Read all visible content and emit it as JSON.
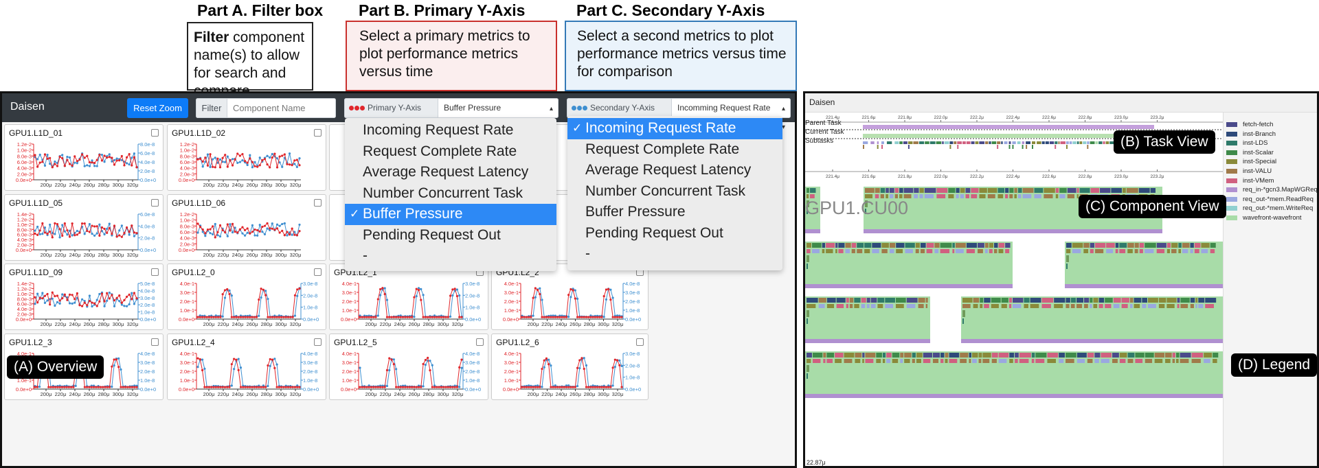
{
  "callouts": {
    "a_title": "Part A. Filter box",
    "a_bold": "Filter",
    "a_text": " component name(s) to allow for search and compare",
    "b_title": "Part B. Primary Y-Axis",
    "b_text": "Select a primary metrics to plot performance metrics versus time",
    "c_title": "Part C. Secondary Y-Axis",
    "c_text": "Select a second metrics to plot performance metrics versus time for comparison"
  },
  "navbar": {
    "brand": "Daisen",
    "reset_zoom": "Reset Zoom",
    "filter_label": "Filter",
    "filter_placeholder": "Component Name",
    "primary_label": "Primary Y-Axis",
    "primary_value": "Buffer Pressure",
    "secondary_label": "Secondary Y-Axis",
    "secondary_value": "Incomming Request Rate"
  },
  "colors": {
    "primary": "#e0262b",
    "secondary": "#3f8fd0",
    "navbar": "#343a40",
    "accent": "#0d7bf7"
  },
  "cards": [
    {
      "title": "GPU1.L1D_01",
      "left": [
        "1.2e-2",
        "1.0e-2",
        "8.0e-3",
        "6.0e-3",
        "4.0e-3",
        "2.0e-3",
        "0.0e+0"
      ],
      "right": [
        "8.0e-8",
        "6.0e-8",
        "4.0e-8",
        "2.0e-8",
        "0.0e+0"
      ]
    },
    {
      "title": "GPU1.L1D_02",
      "left": [
        "1.2e-2",
        "1.0e-2",
        "8.0e-3",
        "6.0e-3",
        "4.0e-3",
        "2.0e-3",
        "0.0e+0"
      ],
      "right": []
    },
    {
      "title": "GPU1.L1D_05",
      "left": [
        "1.4e-2",
        "1.2e-2",
        "1.0e-2",
        "8.0e-3",
        "6.0e-3",
        "4.0e-3",
        "2.0e-3",
        "0.0e+0"
      ],
      "right": [
        "6.0e-8",
        "4.0e-8",
        "2.0e-8",
        "0.0e+0"
      ]
    },
    {
      "title": "GPU1.L1D_06",
      "left": [
        "1.2e-2",
        "1.0e-2",
        "8.0e-3",
        "6.0e-3",
        "4.0e-3",
        "2.0e-3",
        "0.0e+0"
      ],
      "right": []
    },
    {
      "title": "GPU1.L1D_09",
      "left": [
        "1.4e-2",
        "1.2e-2",
        "1.0e-2",
        "8.0e-3",
        "6.0e-3",
        "4.0e-3",
        "2.0e-3",
        "0.0e+0"
      ],
      "right": [
        "5.0e-8",
        "4.0e-8",
        "3.0e-8",
        "2.0e-8",
        "1.0e-8",
        "0.0e+0"
      ]
    },
    {
      "title": "GPU1.L2_0",
      "left": [
        "4.0e-1",
        "3.0e-1",
        "2.0e-1",
        "1.0e-1",
        "0.0e+0"
      ],
      "right": [
        "3.0e-8",
        "2.0e-8",
        "1.0e-8",
        "0.0e+0"
      ]
    },
    {
      "title": "GPU1.L2_1",
      "left": [
        "4.0e-1",
        "3.0e-1",
        "2.0e-1",
        "1.0e-1",
        "0.0e+0"
      ],
      "right": [
        "3.0e-8",
        "2.0e-8",
        "1.0e-8",
        "0.0e+0"
      ]
    },
    {
      "title": "GPU1.L2_2",
      "left": [
        "4.0e-1",
        "3.0e-1",
        "2.0e-1",
        "1.0e-1",
        "0.0e+0"
      ],
      "right": [
        "4.0e-8",
        "3.0e-8",
        "2.0e-8",
        "1.0e-8",
        "0.0e+0"
      ]
    },
    {
      "title": "GPU1.L2_3",
      "left": [
        "4.0e-1",
        "3.0e-1",
        "2.0e-1",
        "1.0e-1",
        "0.0e+0"
      ],
      "right": [
        "4.0e-8",
        "3.0e-8",
        "2.0e-8",
        "1.0e-8",
        "0.0e+0"
      ]
    },
    {
      "title": "GPU1.L2_4",
      "left": [
        "4.0e-1",
        "3.0e-1",
        "2.0e-1",
        "1.0e-1",
        "0.0e+0"
      ],
      "right": [
        "4.0e-8",
        "3.0e-8",
        "2.0e-8",
        "1.0e-8",
        "0.0e+0"
      ]
    },
    {
      "title": "GPU1.L2_5",
      "left": [
        "4.0e-1",
        "3.0e-1",
        "2.0e-1",
        "1.0e-1",
        "0.0e+0"
      ],
      "right": [
        "4.0e-8",
        "3.0e-8",
        "2.0e-8",
        "1.0e-8",
        "0.0e+0"
      ]
    },
    {
      "title": "GPU1.L2_6",
      "left": [
        "4.0e-1",
        "3.0e-1",
        "2.0e-1",
        "1.0e-1",
        "0.0e+0"
      ],
      "right": [
        "3.0e-8",
        "2.0e-8",
        "1.0e-8",
        "0.0e+0"
      ]
    }
  ],
  "partial_axis_labels": [
    "2.0e-3",
    "0.0e+0",
    "0.0e+0"
  ],
  "x_ticks": [
    "200μ",
    "220μ",
    "240μ",
    "260μ",
    "280μ",
    "300μ",
    "320μ"
  ],
  "primary_menu": [
    "Incoming Request Rate",
    "Request Complete Rate",
    "Average Request Latency",
    "Number Concurrent Task",
    "Buffer Pressure",
    "Pending Request Out",
    "-"
  ],
  "primary_selected": 4,
  "secondary_menu": [
    "Incoming Request Rate",
    "Request Complete Rate",
    "Average Request Latency",
    "Number Concurrent Task",
    "Buffer Pressure",
    "Pending Request Out",
    "-"
  ],
  "secondary_selected": 0,
  "checkmark": "✓",
  "badges": {
    "overview": "(A) Overview",
    "task_view": "(B) Task View",
    "component_view": "(C) Component View",
    "legend": "(D) Legend"
  },
  "daisen_right": {
    "brand": "Daisen",
    "time_ticks": [
      "221.4μ",
      "221.6μ",
      "221.8μ",
      "222.0μ",
      "222.2μ",
      "222.4μ",
      "222.6μ",
      "222.8μ",
      "223.0μ",
      "223.2μ"
    ],
    "parent_task": "Parent Task",
    "current_task": "Current Task",
    "subtasks": "Subtasks",
    "component": "GPU1.CU00",
    "bottom_time": "22.87μ"
  },
  "legend": [
    {
      "label": "fetch-fetch",
      "color": "#4a4a8a"
    },
    {
      "label": "inst-Branch",
      "color": "#2e4a7a"
    },
    {
      "label": "inst-LDS",
      "color": "#2f7a6a"
    },
    {
      "label": "inst-Scalar",
      "color": "#3f8a4a"
    },
    {
      "label": "inst-Special",
      "color": "#8a8a3a"
    },
    {
      "label": "inst-VALU",
      "color": "#a07a4a"
    },
    {
      "label": "inst-VMem",
      "color": "#d06080"
    },
    {
      "label": "req_in-*gcn3.MapWGReq",
      "color": "#b090d0"
    },
    {
      "label": "req_out-*mem.ReadReq",
      "color": "#9aa8e0"
    },
    {
      "label": "req_out-*mem.WriteReq",
      "color": "#90d0d0"
    },
    {
      "label": "wavefront-wavefront",
      "color": "#a8dca8"
    }
  ]
}
